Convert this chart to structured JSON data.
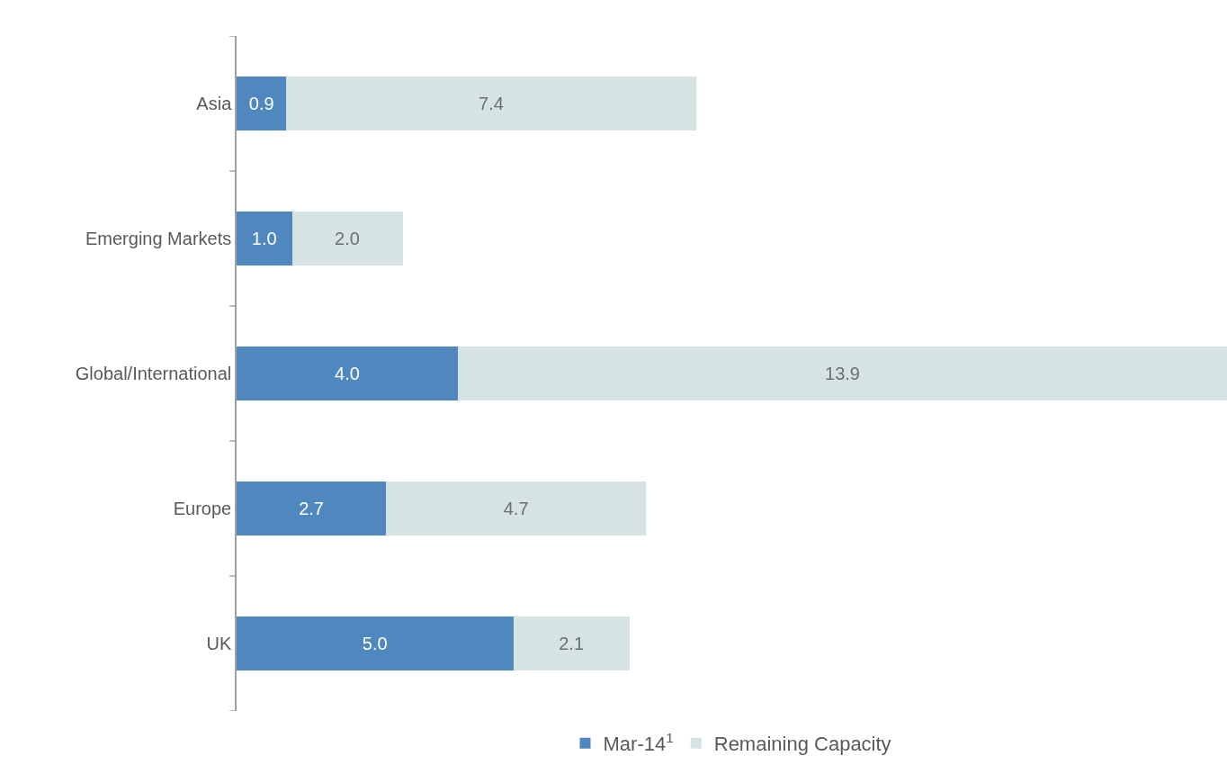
{
  "chart_data": {
    "type": "bar",
    "orientation": "horizontal",
    "stacked": true,
    "tick_labels": "y",
    "legend": "bottom",
    "categories": [
      "Asia",
      "Emerging Markets",
      "Global/International",
      "Europe",
      "UK"
    ],
    "series": [
      {
        "name": "Mar-14$^{1}$",
        "color": "#4f88bf",
        "values": [
          0.9,
          1.0,
          4.0,
          2.7,
          5.0
        ],
        "value_labels": [
          "0.9",
          "1.0",
          "4.0",
          "2.7",
          "5.0"
        ]
      },
      {
        "name": "Remaining Capacity",
        "color": "#d6e3e3",
        "values": [
          7.4,
          2.0,
          13.9,
          4.7,
          2.1
        ],
        "value_labels": [
          "7.4",
          "2.0",
          "13.9",
          "4.7",
          "2.1"
        ]
      }
    ]
  }
}
